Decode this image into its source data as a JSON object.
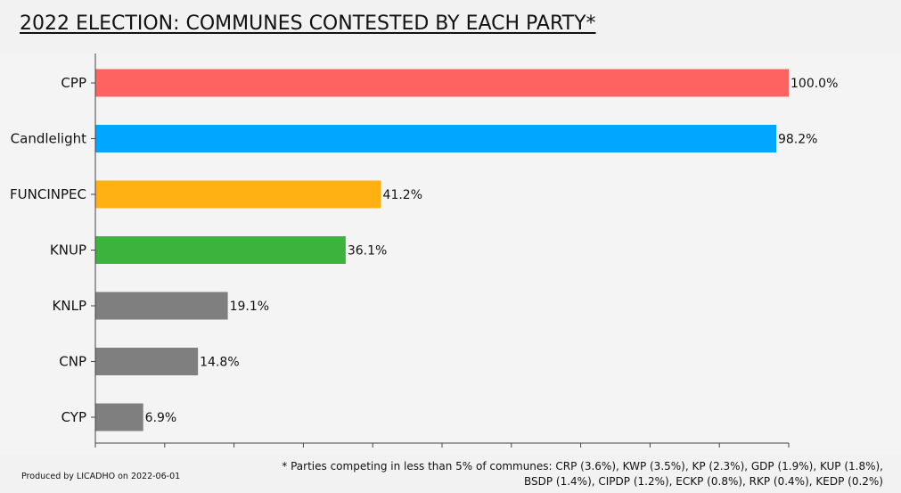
{
  "title": "2022 ELECTION: COMMUNES CONTESTED BY EACH PARTY*",
  "credit": "Produced by LICADHO on 2022-06-01",
  "footnote": "* Parties competing in less than 5% of communes: CRP (3.6%), KWP (3.5%), KP (2.3%), GDP (1.9%), KUP (1.8%), BSDP (1.4%), CIPDP (1.2%), ECKP (0.8%), RKP (0.4%), KEDP (0.2%)",
  "chart_data": {
    "type": "bar",
    "orientation": "horizontal",
    "title": "2022 ELECTION: COMMUNES CONTESTED BY EACH PARTY*",
    "xlabel": "",
    "ylabel": "",
    "xlim": [
      0,
      100
    ],
    "categories": [
      "CPP",
      "Candlelight",
      "FUNCINPEC",
      "KNUP",
      "KNLP",
      "CNP",
      "CYP"
    ],
    "values": [
      100.0,
      98.2,
      41.2,
      36.1,
      19.1,
      14.8,
      6.9
    ],
    "value_labels": [
      "100.0%",
      "98.2%",
      "41.2%",
      "36.1%",
      "19.1%",
      "14.8%",
      "6.9%"
    ],
    "colors": [
      "#ff6361",
      "#00a6ff",
      "#ffb114",
      "#3bb33c",
      "#7f7f7f",
      "#7f7f7f",
      "#7f7f7f"
    ],
    "grid": false,
    "legend": "none"
  }
}
